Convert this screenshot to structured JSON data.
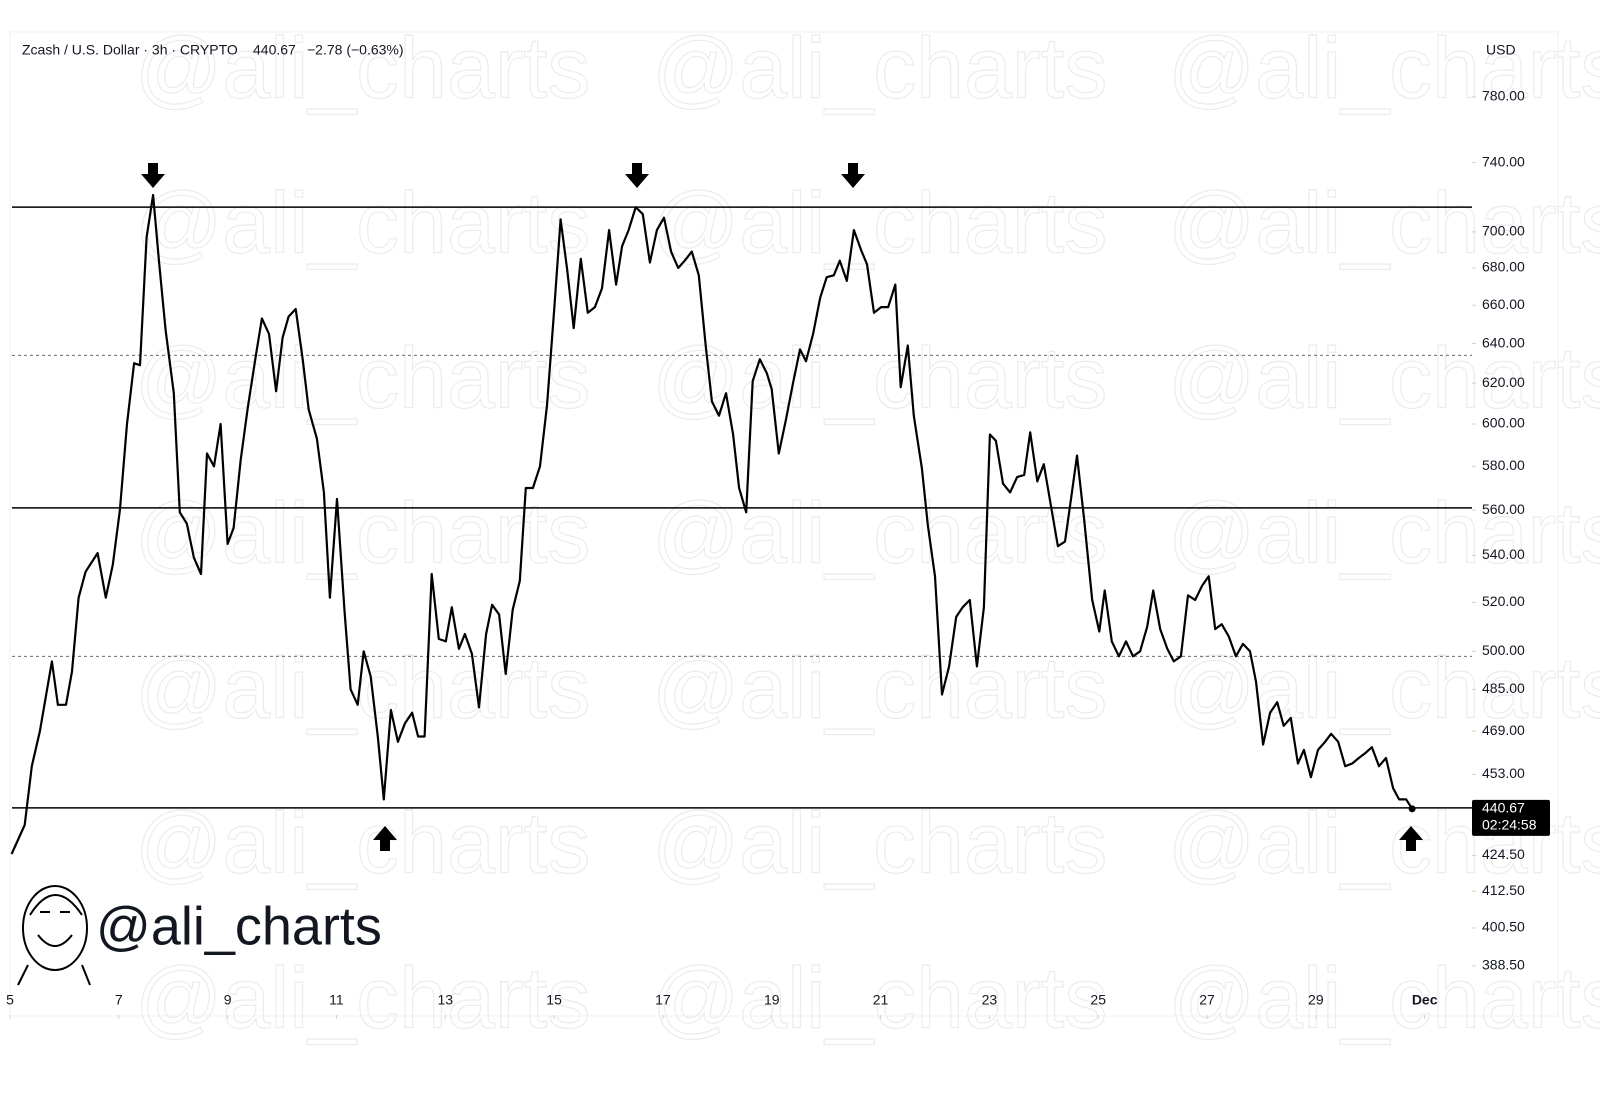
{
  "chart_data": {
    "type": "line",
    "title": "Zcash / U.S. Dollar · 3h · CRYPTO",
    "last_price": 440.67,
    "change": "−2.78 (−0.63%)",
    "currency": "USD",
    "countdown": "02:24:58",
    "watermark": "@ali_charts",
    "log_scale": true,
    "grid": false,
    "color": "#000000",
    "x": [
      5.03,
      5.27,
      5.4,
      5.55,
      5.77,
      5.88,
      6.03,
      6.14,
      6.26,
      6.39,
      6.61,
      6.76,
      6.89,
      7.02,
      7.15,
      7.28,
      7.39,
      7.51,
      7.63,
      7.74,
      7.86,
      8.01,
      8.12,
      8.25,
      8.38,
      8.51,
      8.62,
      8.75,
      8.87,
      9,
      9.11,
      9.24,
      9.37,
      9.52,
      9.63,
      9.76,
      9.89,
      10.01,
      10.12,
      10.25,
      10.38,
      10.49,
      10.64,
      10.77,
      10.88,
      11.01,
      11.15,
      11.26,
      11.39,
      11.5,
      11.63,
      11.76,
      11.87,
      12,
      12.13,
      12.26,
      12.39,
      12.5,
      12.62,
      12.75,
      12.88,
      13.01,
      13.12,
      13.25,
      13.36,
      13.49,
      13.62,
      13.75,
      13.86,
      13.99,
      14.11,
      14.24,
      14.37,
      14.48,
      14.61,
      14.74,
      14.87,
      15,
      15.12,
      15.24,
      15.36,
      15.49,
      15.62,
      15.75,
      15.88,
      16.01,
      16.14,
      16.25,
      16.37,
      16.5,
      16.63,
      16.76,
      16.89,
      17.02,
      17.15,
      17.28,
      17.4,
      17.53,
      17.66,
      17.79,
      17.9,
      18.03,
      18.16,
      18.29,
      18.4,
      18.53,
      18.65,
      18.78,
      18.91,
      19,
      19.13,
      19.26,
      19.39,
      19.52,
      19.63,
      19.76,
      19.89,
      20.01,
      20.14,
      20.25,
      20.38,
      20.51,
      20.64,
      20.75,
      20.88,
      21.01,
      21.14,
      21.27,
      21.37,
      21.5,
      21.61,
      21.76,
      21.87,
      22,
      22.13,
      22.26,
      22.39,
      22.51,
      22.64,
      22.77,
      22.9,
      23.01,
      23.12,
      23.25,
      23.38,
      23.51,
      23.64,
      23.75,
      23.88,
      24,
      24.13,
      24.26,
      24.39,
      24.5,
      24.61,
      24.74,
      24.89,
      25.02,
      25.12,
      25.25,
      25.38,
      25.51,
      25.64,
      25.77,
      25.9,
      26.01,
      26.14,
      26.27,
      26.39,
      26.52,
      26.65,
      26.78,
      26.91,
      27.03,
      27.15,
      27.27,
      27.4,
      27.53,
      27.66,
      27.79,
      27.9,
      28.03,
      28.16,
      28.29,
      28.41,
      28.54,
      28.67,
      28.78,
      28.91,
      29.04,
      29.17,
      29.28,
      29.41,
      29.54,
      29.67,
      29.79,
      29.92,
      30.03,
      30.16,
      30.29,
      30.42,
      30.53,
      30.66,
      30.77
    ],
    "values": [
      425,
      435,
      456,
      469,
      496,
      479,
      479,
      492,
      522,
      533,
      541,
      522,
      536,
      560,
      600,
      630,
      629,
      697,
      721,
      683,
      647,
      615,
      559,
      554,
      539,
      532,
      586,
      580,
      600,
      545,
      552,
      583,
      608,
      634,
      653,
      645,
      616,
      643,
      654,
      658,
      632,
      607,
      593,
      568,
      522,
      565,
      516,
      485,
      479,
      500,
      490,
      467,
      444,
      477,
      465,
      472,
      476,
      467,
      467,
      532,
      505,
      504,
      518,
      501,
      507,
      499,
      478,
      507,
      519,
      515,
      491,
      517,
      529,
      570,
      570,
      580,
      609,
      657,
      707,
      679,
      648,
      685,
      656,
      659,
      669,
      701,
      671,
      692,
      701,
      714,
      710,
      683,
      701,
      708,
      689,
      680,
      684,
      689,
      676,
      638,
      611,
      604,
      615,
      595,
      570,
      559,
      621,
      632,
      625,
      617,
      586,
      602,
      620,
      637,
      631,
      645,
      664,
      675,
      676,
      684,
      673,
      701,
      690,
      682,
      656,
      659,
      659,
      671,
      618,
      639,
      604,
      579,
      553,
      531,
      483,
      494,
      514,
      518,
      521,
      494,
      518,
      595,
      592,
      572,
      568,
      575,
      576,
      596,
      573,
      581,
      562,
      544,
      546,
      565,
      585,
      556,
      521,
      508,
      525,
      504,
      498,
      504,
      498,
      500,
      510,
      525,
      509,
      501,
      496,
      498,
      523,
      521,
      527,
      531,
      509,
      511,
      506,
      498,
      503,
      500,
      488,
      464,
      476,
      480,
      471,
      474,
      457,
      462,
      452,
      462,
      465,
      468,
      465,
      456,
      457,
      459,
      461,
      463,
      456,
      459,
      448,
      444,
      444,
      440.67
    ],
    "levels": [
      {
        "value": 714,
        "style": "solid"
      },
      {
        "value": 634,
        "style": "dashed"
      },
      {
        "value": 561,
        "style": "solid"
      },
      {
        "value": 498,
        "style": "dashed"
      },
      {
        "value": 441,
        "style": "solid"
      }
    ],
    "xlim": [
      5,
      31.87
    ],
    "xticks": [
      5,
      7,
      9,
      11,
      13,
      15,
      17,
      19,
      21,
      23,
      25,
      27,
      29,
      {
        "value": 31,
        "label": "Dec"
      }
    ],
    "ylim": [
      373.5,
      821.7
    ],
    "yticks": [
      {
        "value": 780,
        "label": "780.00"
      },
      {
        "value": 740,
        "label": "740.00"
      },
      {
        "value": 700,
        "label": "700.00"
      },
      {
        "value": 680,
        "label": "680.00"
      },
      {
        "value": 660,
        "label": "660.00"
      },
      {
        "value": 640,
        "label": "640.00"
      },
      {
        "value": 620,
        "label": "620.00"
      },
      {
        "value": 600,
        "label": "600.00"
      },
      {
        "value": 580,
        "label": "580.00"
      },
      {
        "value": 560,
        "label": "560.00"
      },
      {
        "value": 540,
        "label": "540.00"
      },
      {
        "value": 520,
        "label": "520.00"
      },
      {
        "value": 500,
        "label": "500.00"
      },
      {
        "value": 485,
        "label": "485.00"
      },
      {
        "value": 469,
        "label": "469.00"
      },
      {
        "value": 453,
        "label": "453.00"
      },
      {
        "value": 424.5,
        "label": "424.50"
      },
      {
        "value": 412.5,
        "label": "412.50"
      },
      {
        "value": 400.5,
        "label": "400.50"
      },
      {
        "value": 388.5,
        "label": "388.50"
      }
    ]
  }
}
